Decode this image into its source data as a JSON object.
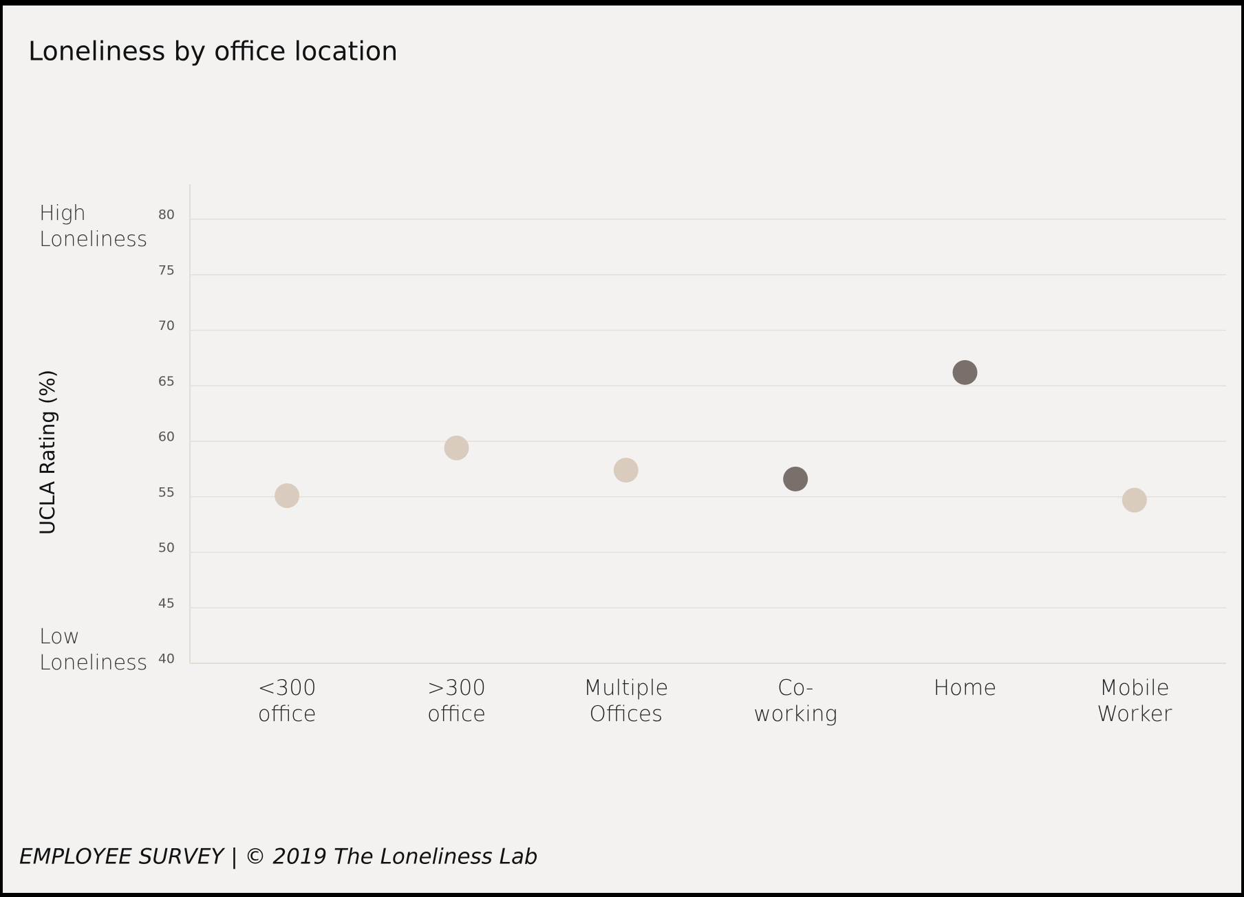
{
  "chart_data": {
    "type": "dot",
    "title": "Loneliness by office location",
    "y_label": "UCLA Rating (%)",
    "annotations": [
      "High Loneliness",
      "Low Loneliness"
    ],
    "footer": "EMPLOYEE SURVEY | © 2019 The Loneliness Lab",
    "categories": [
      "<300 office",
      ">300 office",
      "Multiple Offices",
      "Co-working",
      "Home",
      "Mobile Worker"
    ],
    "values": [
      55.1,
      59.4,
      57.4,
      56.6,
      66.2,
      54.7
    ],
    "colors": [
      "#d9cbbd",
      "#d9cbbd",
      "#d9cbbd",
      "#7a706b",
      "#7a706b",
      "#d9cbbd"
    ],
    "ylim": [
      40,
      80
    ],
    "yticks": [
      40,
      45,
      50,
      55,
      60,
      65,
      70,
      75,
      80
    ],
    "grid": true
  }
}
